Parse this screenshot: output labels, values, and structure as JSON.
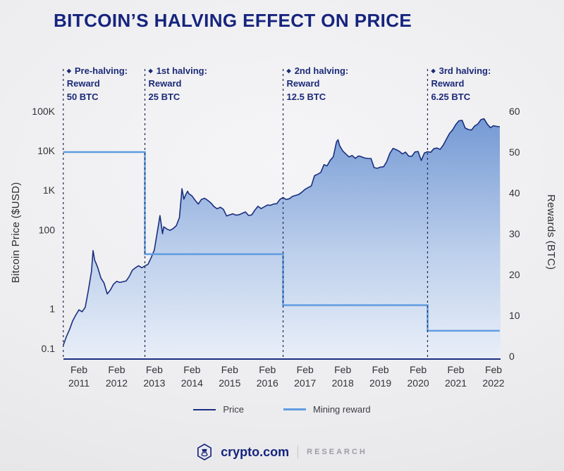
{
  "chart_data": {
    "type": "area",
    "title": "BITCOIN’S HALVING EFFECT ON PRICE",
    "colors": {
      "title": "#16247e",
      "price_line": "#1b2f7f",
      "reward_line": "#5f9ce0",
      "area_top": "#6e95d3",
      "area_mid": "#b9cdeb",
      "area_bottom": "#e9eff9",
      "dashed_line": "#1c2650",
      "axis_text": "#333338"
    },
    "x_axis": {
      "unit": "months since Feb 2011",
      "domain_months": [
        -5,
        134
      ],
      "ticks": [
        {
          "month": 0,
          "line1": "Feb",
          "line2": "2011"
        },
        {
          "month": 12,
          "line1": "Feb",
          "line2": "2012"
        },
        {
          "month": 24,
          "line1": "Feb",
          "line2": "2013"
        },
        {
          "month": 36,
          "line1": "Feb",
          "line2": "2014"
        },
        {
          "month": 48,
          "line1": "Feb",
          "line2": "2015"
        },
        {
          "month": 60,
          "line1": "Feb",
          "line2": "2016"
        },
        {
          "month": 72,
          "line1": "Feb",
          "line2": "2017"
        },
        {
          "month": 84,
          "line1": "Feb",
          "line2": "2018"
        },
        {
          "month": 96,
          "line1": "Feb",
          "line2": "2019"
        },
        {
          "month": 108,
          "line1": "Feb",
          "line2": "2020"
        },
        {
          "month": 120,
          "line1": "Feb",
          "line2": "2021"
        },
        {
          "month": 132,
          "line1": "Feb",
          "line2": "2022"
        }
      ]
    },
    "left_axis": {
      "label": "Bitcoin Price ($USD)",
      "scale": "log",
      "min": 0.1,
      "max": 100000,
      "ticks": [
        {
          "value": 100000,
          "label": "100K"
        },
        {
          "value": 10000,
          "label": "10K"
        },
        {
          "value": 1000,
          "label": "1K"
        },
        {
          "value": 100,
          "label": "100"
        },
        {
          "value": 1,
          "label": "1"
        },
        {
          "value": 0.1,
          "label": "0.1"
        }
      ]
    },
    "right_axis": {
      "label": "Rewards (BTC)",
      "scale": "linear",
      "min": 0,
      "max": 60,
      "ticks": [
        60,
        50,
        40,
        30,
        20,
        10,
        0
      ]
    },
    "halvings": [
      {
        "month": -5,
        "title": "Pre-halving:",
        "line2": "Reward",
        "line3": "50 BTC"
      },
      {
        "month": 21,
        "title": "1st halving:",
        "line2": "Reward",
        "line3": "25 BTC"
      },
      {
        "month": 65,
        "title": "2nd halving:",
        "line2": "Reward",
        "line3": "12.5 BTC"
      },
      {
        "month": 111,
        "title": "3rd halving:",
        "line2": "Reward",
        "line3": "6.25 BTC"
      }
    ],
    "series": [
      {
        "name": "Price",
        "kind": "area-line",
        "unit": "USD",
        "points": [
          [
            -5,
            0.12
          ],
          [
            -4,
            0.2
          ],
          [
            -3,
            0.3
          ],
          [
            -2,
            0.5
          ],
          [
            -1,
            0.7
          ],
          [
            0,
            0.95
          ],
          [
            1,
            0.85
          ],
          [
            2,
            1.1
          ],
          [
            3,
            3
          ],
          [
            4,
            9
          ],
          [
            4.5,
            30
          ],
          [
            5,
            17
          ],
          [
            5.5,
            14
          ],
          [
            6,
            11
          ],
          [
            7,
            6
          ],
          [
            8,
            4.5
          ],
          [
            9,
            2.4
          ],
          [
            10,
            3
          ],
          [
            11,
            4.2
          ],
          [
            12,
            5
          ],
          [
            13,
            4.7
          ],
          [
            14,
            4.9
          ],
          [
            15,
            5.1
          ],
          [
            16,
            6.6
          ],
          [
            17,
            9.5
          ],
          [
            18,
            11
          ],
          [
            19,
            12.4
          ],
          [
            20,
            11
          ],
          [
            21,
            12.2
          ],
          [
            22,
            13.5
          ],
          [
            23,
            20
          ],
          [
            24,
            31
          ],
          [
            25,
            95
          ],
          [
            25.8,
            230
          ],
          [
            26.2,
            140
          ],
          [
            26.6,
            80
          ],
          [
            27,
            120
          ],
          [
            28,
            105
          ],
          [
            29,
            97
          ],
          [
            30,
            108
          ],
          [
            31,
            128
          ],
          [
            32,
            205
          ],
          [
            32.8,
            1100
          ],
          [
            33.4,
            600
          ],
          [
            34,
            780
          ],
          [
            34.6,
            950
          ],
          [
            35,
            820
          ],
          [
            36,
            720
          ],
          [
            37,
            560
          ],
          [
            38,
            450
          ],
          [
            39,
            590
          ],
          [
            40,
            630
          ],
          [
            41,
            560
          ],
          [
            42,
            480
          ],
          [
            43,
            390
          ],
          [
            44,
            340
          ],
          [
            45,
            375
          ],
          [
            46,
            330
          ],
          [
            47,
            225
          ],
          [
            48,
            240
          ],
          [
            49,
            255
          ],
          [
            50,
            236
          ],
          [
            51,
            242
          ],
          [
            52,
            262
          ],
          [
            53,
            285
          ],
          [
            54,
            232
          ],
          [
            55,
            238
          ],
          [
            56,
            315
          ],
          [
            57,
            395
          ],
          [
            58,
            345
          ],
          [
            59,
            382
          ],
          [
            60,
            425
          ],
          [
            61,
            418
          ],
          [
            62,
            452
          ],
          [
            63,
            460
          ],
          [
            64,
            590
          ],
          [
            65,
            660
          ],
          [
            66,
            585
          ],
          [
            67,
            615
          ],
          [
            68,
            705
          ],
          [
            69,
            745
          ],
          [
            70,
            785
          ],
          [
            71,
            905
          ],
          [
            72,
            1060
          ],
          [
            73,
            1180
          ],
          [
            74,
            1290
          ],
          [
            75,
            2350
          ],
          [
            76,
            2550
          ],
          [
            77,
            2850
          ],
          [
            78,
            4450
          ],
          [
            79,
            4150
          ],
          [
            80,
            5750
          ],
          [
            81,
            7100
          ],
          [
            82,
            16800
          ],
          [
            82.5,
            19000
          ],
          [
            83,
            13500
          ],
          [
            84,
            9900
          ],
          [
            85,
            8300
          ],
          [
            86,
            7000
          ],
          [
            87,
            7600
          ],
          [
            88,
            6450
          ],
          [
            89,
            7400
          ],
          [
            90,
            7050
          ],
          [
            91,
            6550
          ],
          [
            92,
            6420
          ],
          [
            93,
            6350
          ],
          [
            94,
            3750
          ],
          [
            95,
            3620
          ],
          [
            96,
            3850
          ],
          [
            97,
            3950
          ],
          [
            98,
            5300
          ],
          [
            99,
            8600
          ],
          [
            100,
            11500
          ],
          [
            101,
            10700
          ],
          [
            102,
            9700
          ],
          [
            103,
            8350
          ],
          [
            104,
            9250
          ],
          [
            105,
            7350
          ],
          [
            106,
            7250
          ],
          [
            107,
            9350
          ],
          [
            108,
            9600
          ],
          [
            109,
            5700
          ],
          [
            110,
            8800
          ],
          [
            111,
            9450
          ],
          [
            112,
            9150
          ],
          [
            113,
            11300
          ],
          [
            114,
            11750
          ],
          [
            115,
            10850
          ],
          [
            116,
            13900
          ],
          [
            117,
            19700
          ],
          [
            118,
            27400
          ],
          [
            119,
            34000
          ],
          [
            120,
            46000
          ],
          [
            121,
            57500
          ],
          [
            122,
            59000
          ],
          [
            123,
            37500
          ],
          [
            124,
            34500
          ],
          [
            125,
            33500
          ],
          [
            126,
            42500
          ],
          [
            127,
            47500
          ],
          [
            128,
            61500
          ],
          [
            129,
            64400
          ],
          [
            130,
            47500
          ],
          [
            131,
            38500
          ],
          [
            132,
            43000
          ],
          [
            133,
            41500
          ],
          [
            134,
            40500
          ]
        ]
      },
      {
        "name": "Mining reward",
        "kind": "step-line",
        "unit": "BTC",
        "steps": [
          {
            "from_month": -5,
            "to_month": 21,
            "reward": 50
          },
          {
            "from_month": 21,
            "to_month": 65,
            "reward": 25
          },
          {
            "from_month": 65,
            "to_month": 111,
            "reward": 12.5
          },
          {
            "from_month": 111,
            "to_month": 134,
            "reward": 6.25
          }
        ]
      }
    ]
  },
  "legend": {
    "items": [
      {
        "label": "Price",
        "color": "#1b2f7f",
        "thickness": 2
      },
      {
        "label": "Mining reward",
        "color": "#5f9ce0",
        "thickness": 3
      }
    ]
  },
  "footer": {
    "brand": "crypto.com",
    "research": "RESEARCH"
  }
}
